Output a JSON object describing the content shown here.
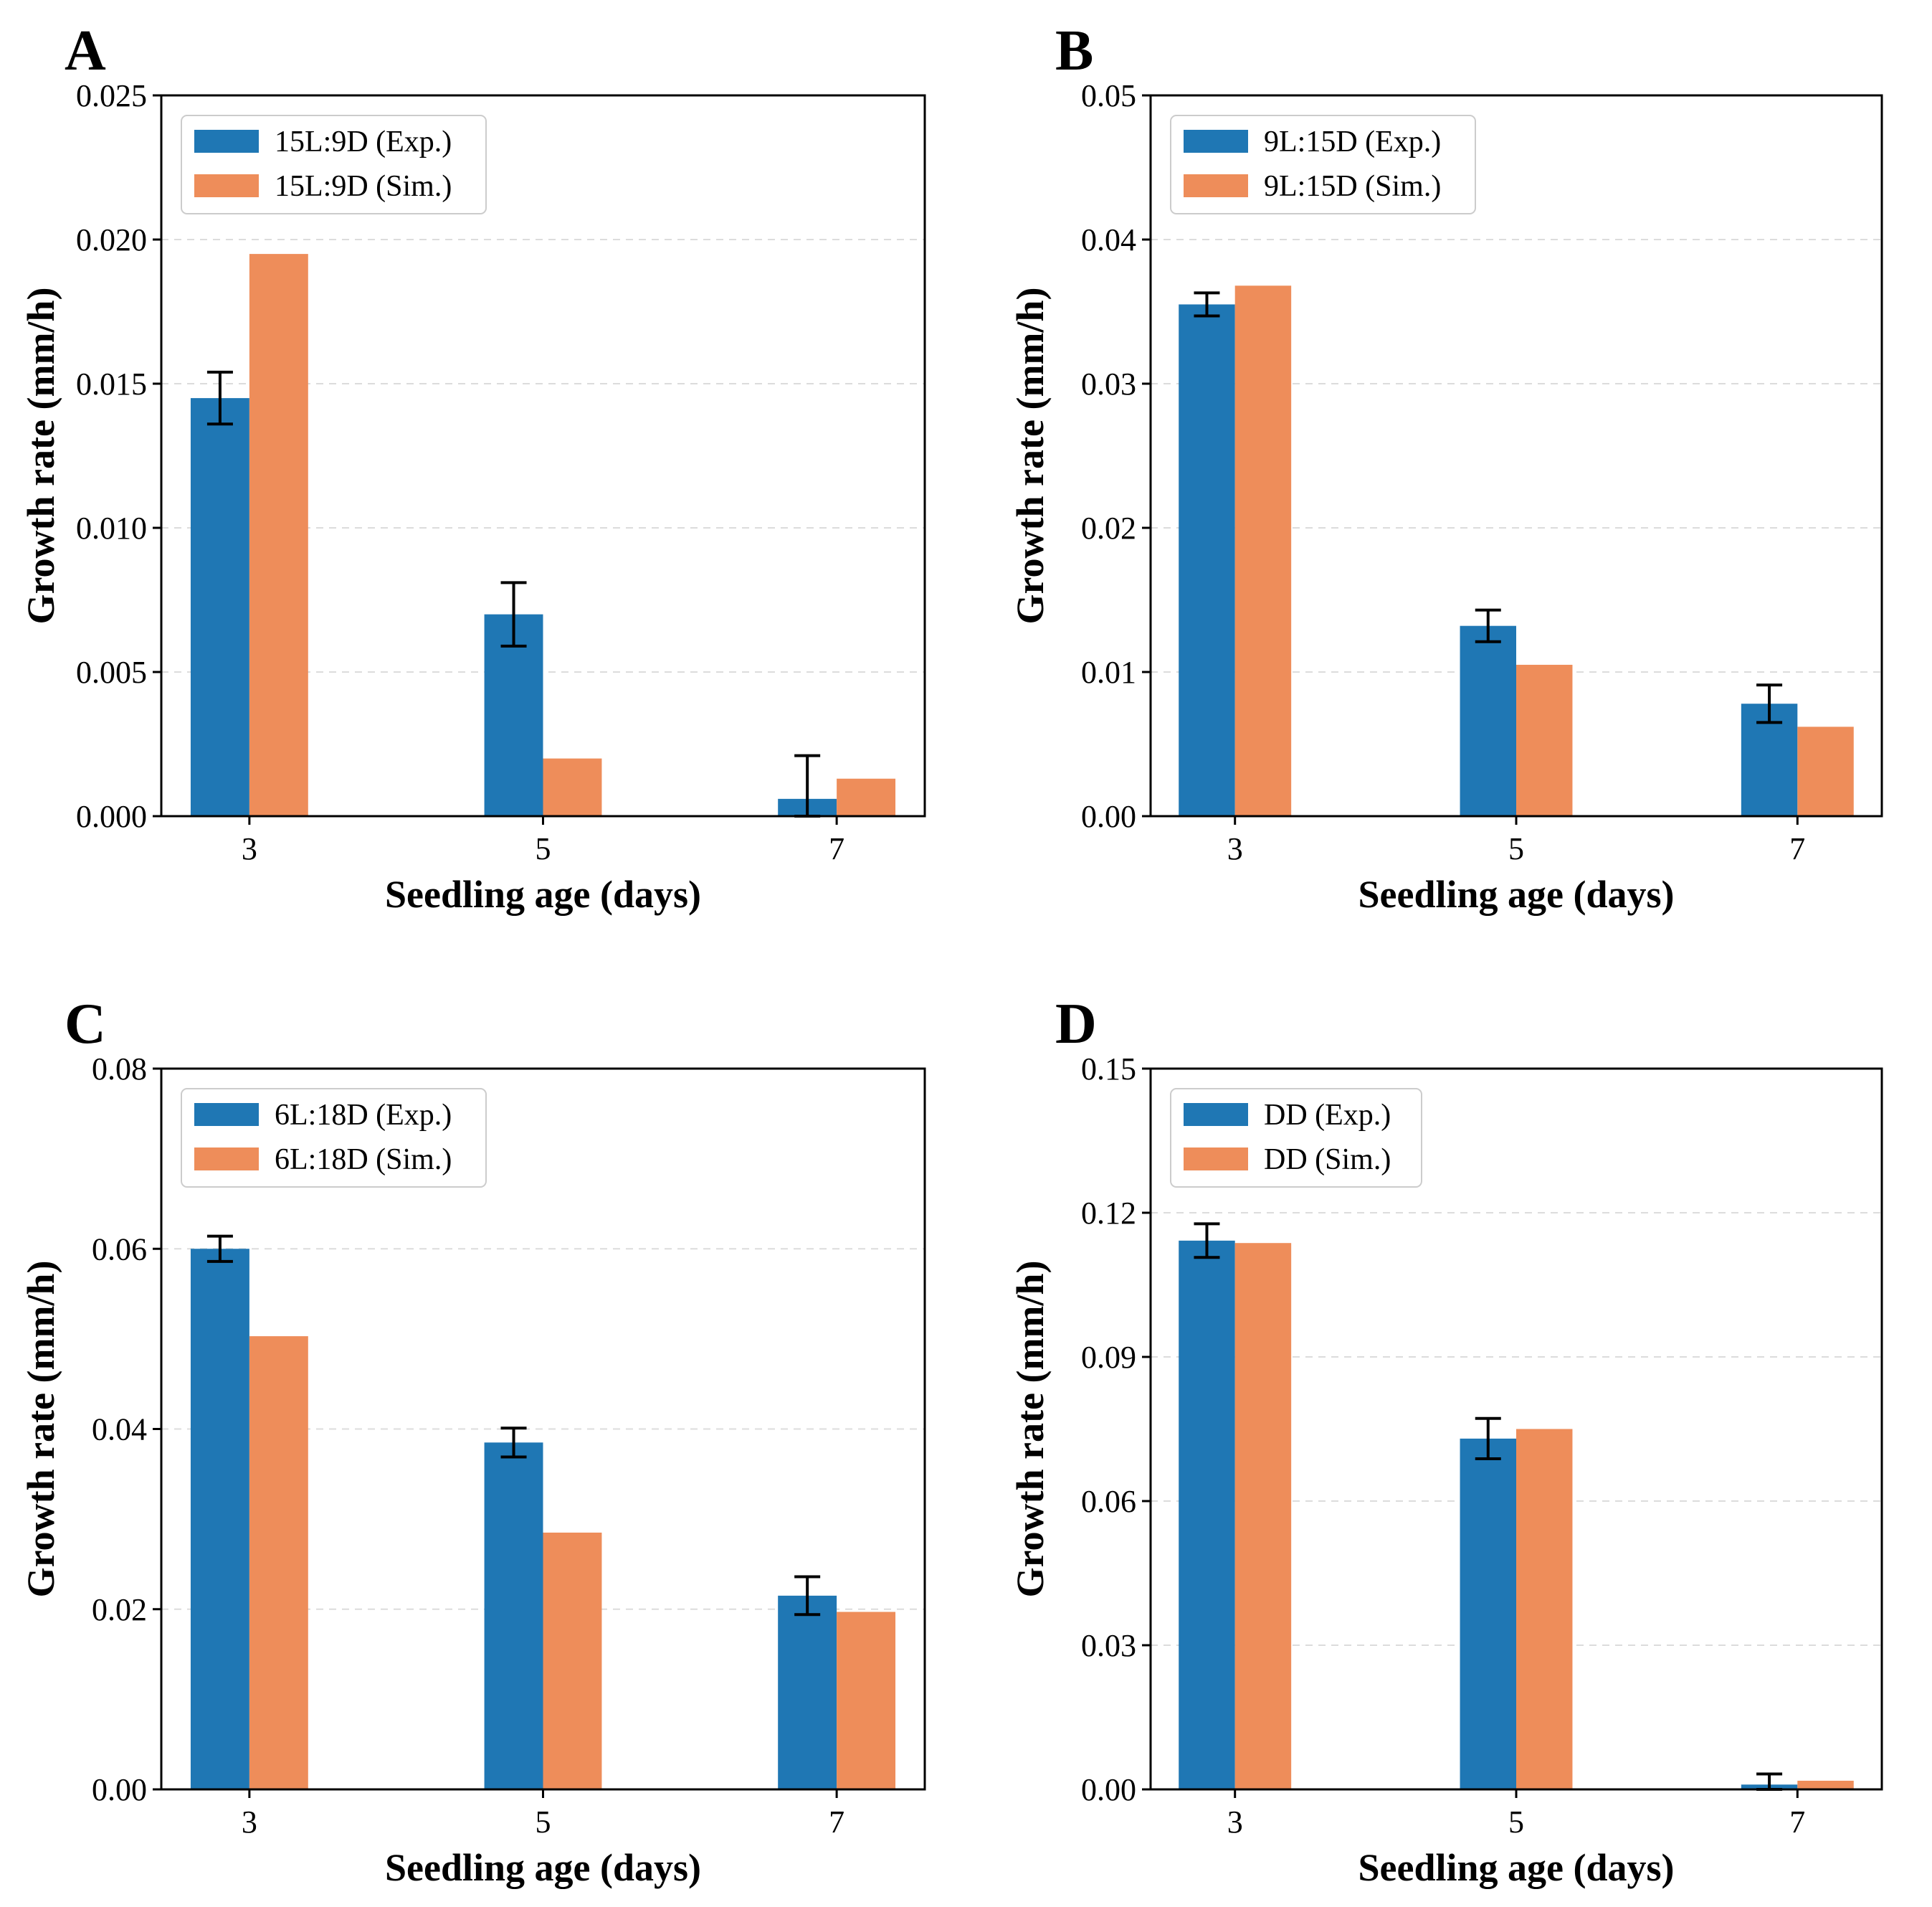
{
  "colors": {
    "exp": "#1f77b4",
    "sim": "#ee8d5a"
  },
  "chart_data": [
    {
      "type": "bar",
      "panel": "A",
      "categories": [
        "3",
        "5",
        "7"
      ],
      "xlabel": "Seedling age (days)",
      "ylabel": "Growth rate (mm/h)",
      "ylim": [
        0,
        0.025
      ],
      "yticks": [
        "0.000",
        "0.005",
        "0.010",
        "0.015",
        "0.020",
        "0.025"
      ],
      "grid": "y-dashed",
      "legend": "top-left",
      "series": [
        {
          "name": "15L:9D (Exp.)",
          "values": [
            0.0145,
            0.007,
            0.0006
          ],
          "errors": [
            0.0009,
            0.0011,
            0.0015
          ]
        },
        {
          "name": "15L:9D (Sim.)",
          "values": [
            0.0195,
            0.002,
            0.0013
          ]
        }
      ]
    },
    {
      "type": "bar",
      "panel": "B",
      "categories": [
        "3",
        "5",
        "7"
      ],
      "xlabel": "Seedling age (days)",
      "ylabel": "Growth rate (mm/h)",
      "ylim": [
        0,
        0.05
      ],
      "yticks": [
        "0.00",
        "0.01",
        "0.02",
        "0.03",
        "0.04",
        "0.05"
      ],
      "grid": "y-dashed",
      "legend": "top-left",
      "series": [
        {
          "name": "9L:15D (Exp.)",
          "values": [
            0.0355,
            0.0132,
            0.0078
          ],
          "errors": [
            0.0008,
            0.0011,
            0.0013
          ]
        },
        {
          "name": "9L:15D (Sim.)",
          "values": [
            0.0368,
            0.0105,
            0.0062
          ]
        }
      ]
    },
    {
      "type": "bar",
      "panel": "C",
      "categories": [
        "3",
        "5",
        "7"
      ],
      "xlabel": "Seedling age (days)",
      "ylabel": "Growth rate (mm/h)",
      "ylim": [
        0,
        0.08
      ],
      "yticks": [
        "0.00",
        "0.02",
        "0.04",
        "0.06",
        "0.08"
      ],
      "grid": "y-dashed",
      "legend": "top-left",
      "series": [
        {
          "name": "6L:18D (Exp.)",
          "values": [
            0.06,
            0.0385,
            0.0215
          ],
          "errors": [
            0.0014,
            0.0016,
            0.0021
          ]
        },
        {
          "name": "6L:18D (Sim.)",
          "values": [
            0.0503,
            0.0285,
            0.0197
          ]
        }
      ]
    },
    {
      "type": "bar",
      "panel": "D",
      "categories": [
        "3",
        "5",
        "7"
      ],
      "xlabel": "Seedling age (days)",
      "ylabel": "Growth rate (mm/h)",
      "ylim": [
        0,
        0.15
      ],
      "yticks": [
        "0.00",
        "0.03",
        "0.06",
        "0.09",
        "0.12",
        "0.15"
      ],
      "grid": "y-dashed",
      "legend": "top-left",
      "series": [
        {
          "name": "DD (Exp.)",
          "values": [
            0.1142,
            0.073,
            0.001
          ],
          "errors": [
            0.0035,
            0.0042,
            0.0022
          ]
        },
        {
          "name": "DD (Sim.)",
          "values": [
            0.1137,
            0.075,
            0.0018
          ]
        }
      ]
    }
  ]
}
